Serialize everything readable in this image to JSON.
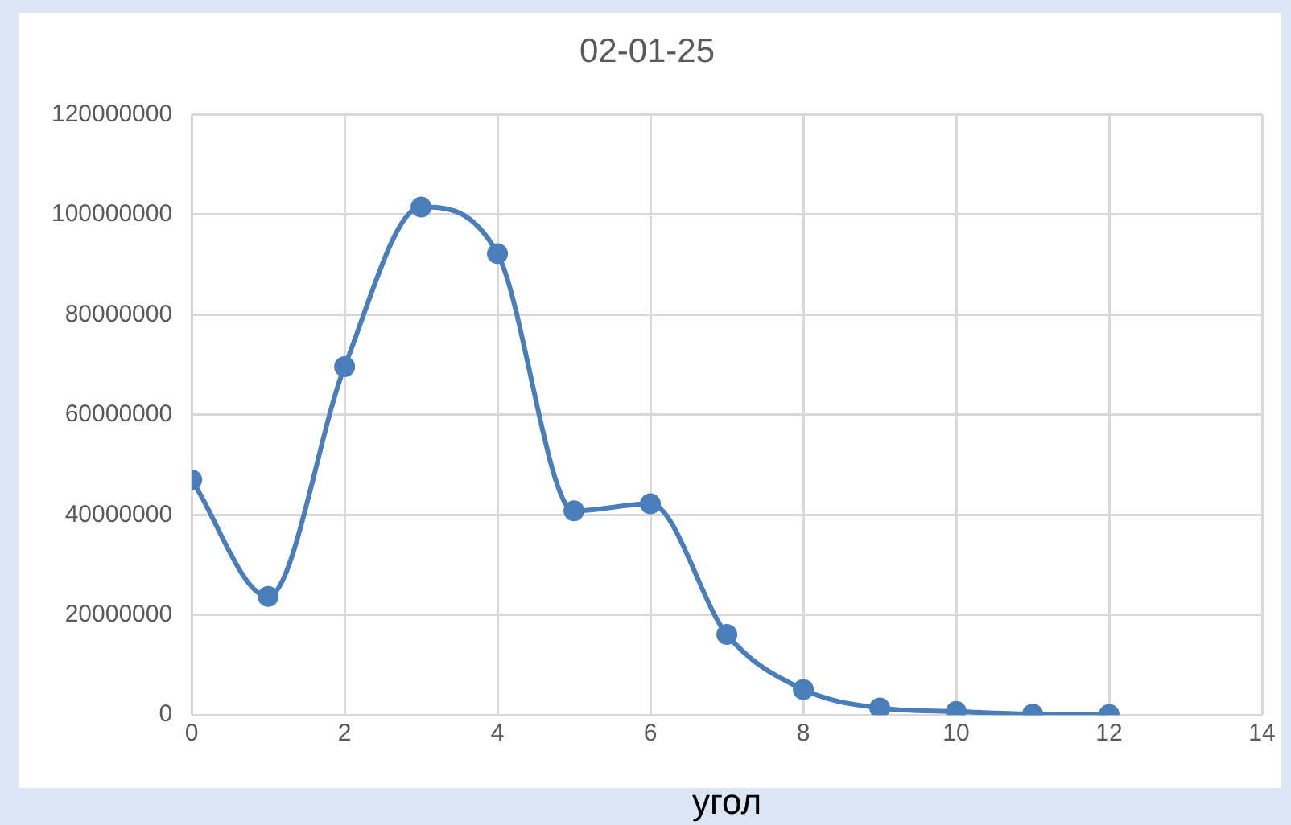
{
  "chart_data": {
    "type": "line",
    "title": "02-01-25",
    "xlabel": "угол",
    "series": [
      {
        "color": "#4a7ebb",
        "x": [
          0,
          1,
          2,
          3,
          4,
          5,
          6,
          7,
          8,
          9,
          10,
          11,
          12
        ],
        "values": [
          47000000,
          23700000,
          69600000,
          101500000,
          92200000,
          40800000,
          42200000,
          16100000,
          5100000,
          1400000,
          700000,
          200000,
          100000
        ]
      }
    ],
    "xlim": [
      0,
      14
    ],
    "xticks": [
      0,
      2,
      4,
      6,
      8,
      10,
      12,
      14
    ],
    "ylim": [
      0,
      120000000
    ],
    "yticks": [
      0,
      20000000,
      40000000,
      60000000,
      80000000,
      100000000,
      120000000
    ],
    "grid": true,
    "legend": false,
    "marker": "circle",
    "line_style": "solid"
  }
}
